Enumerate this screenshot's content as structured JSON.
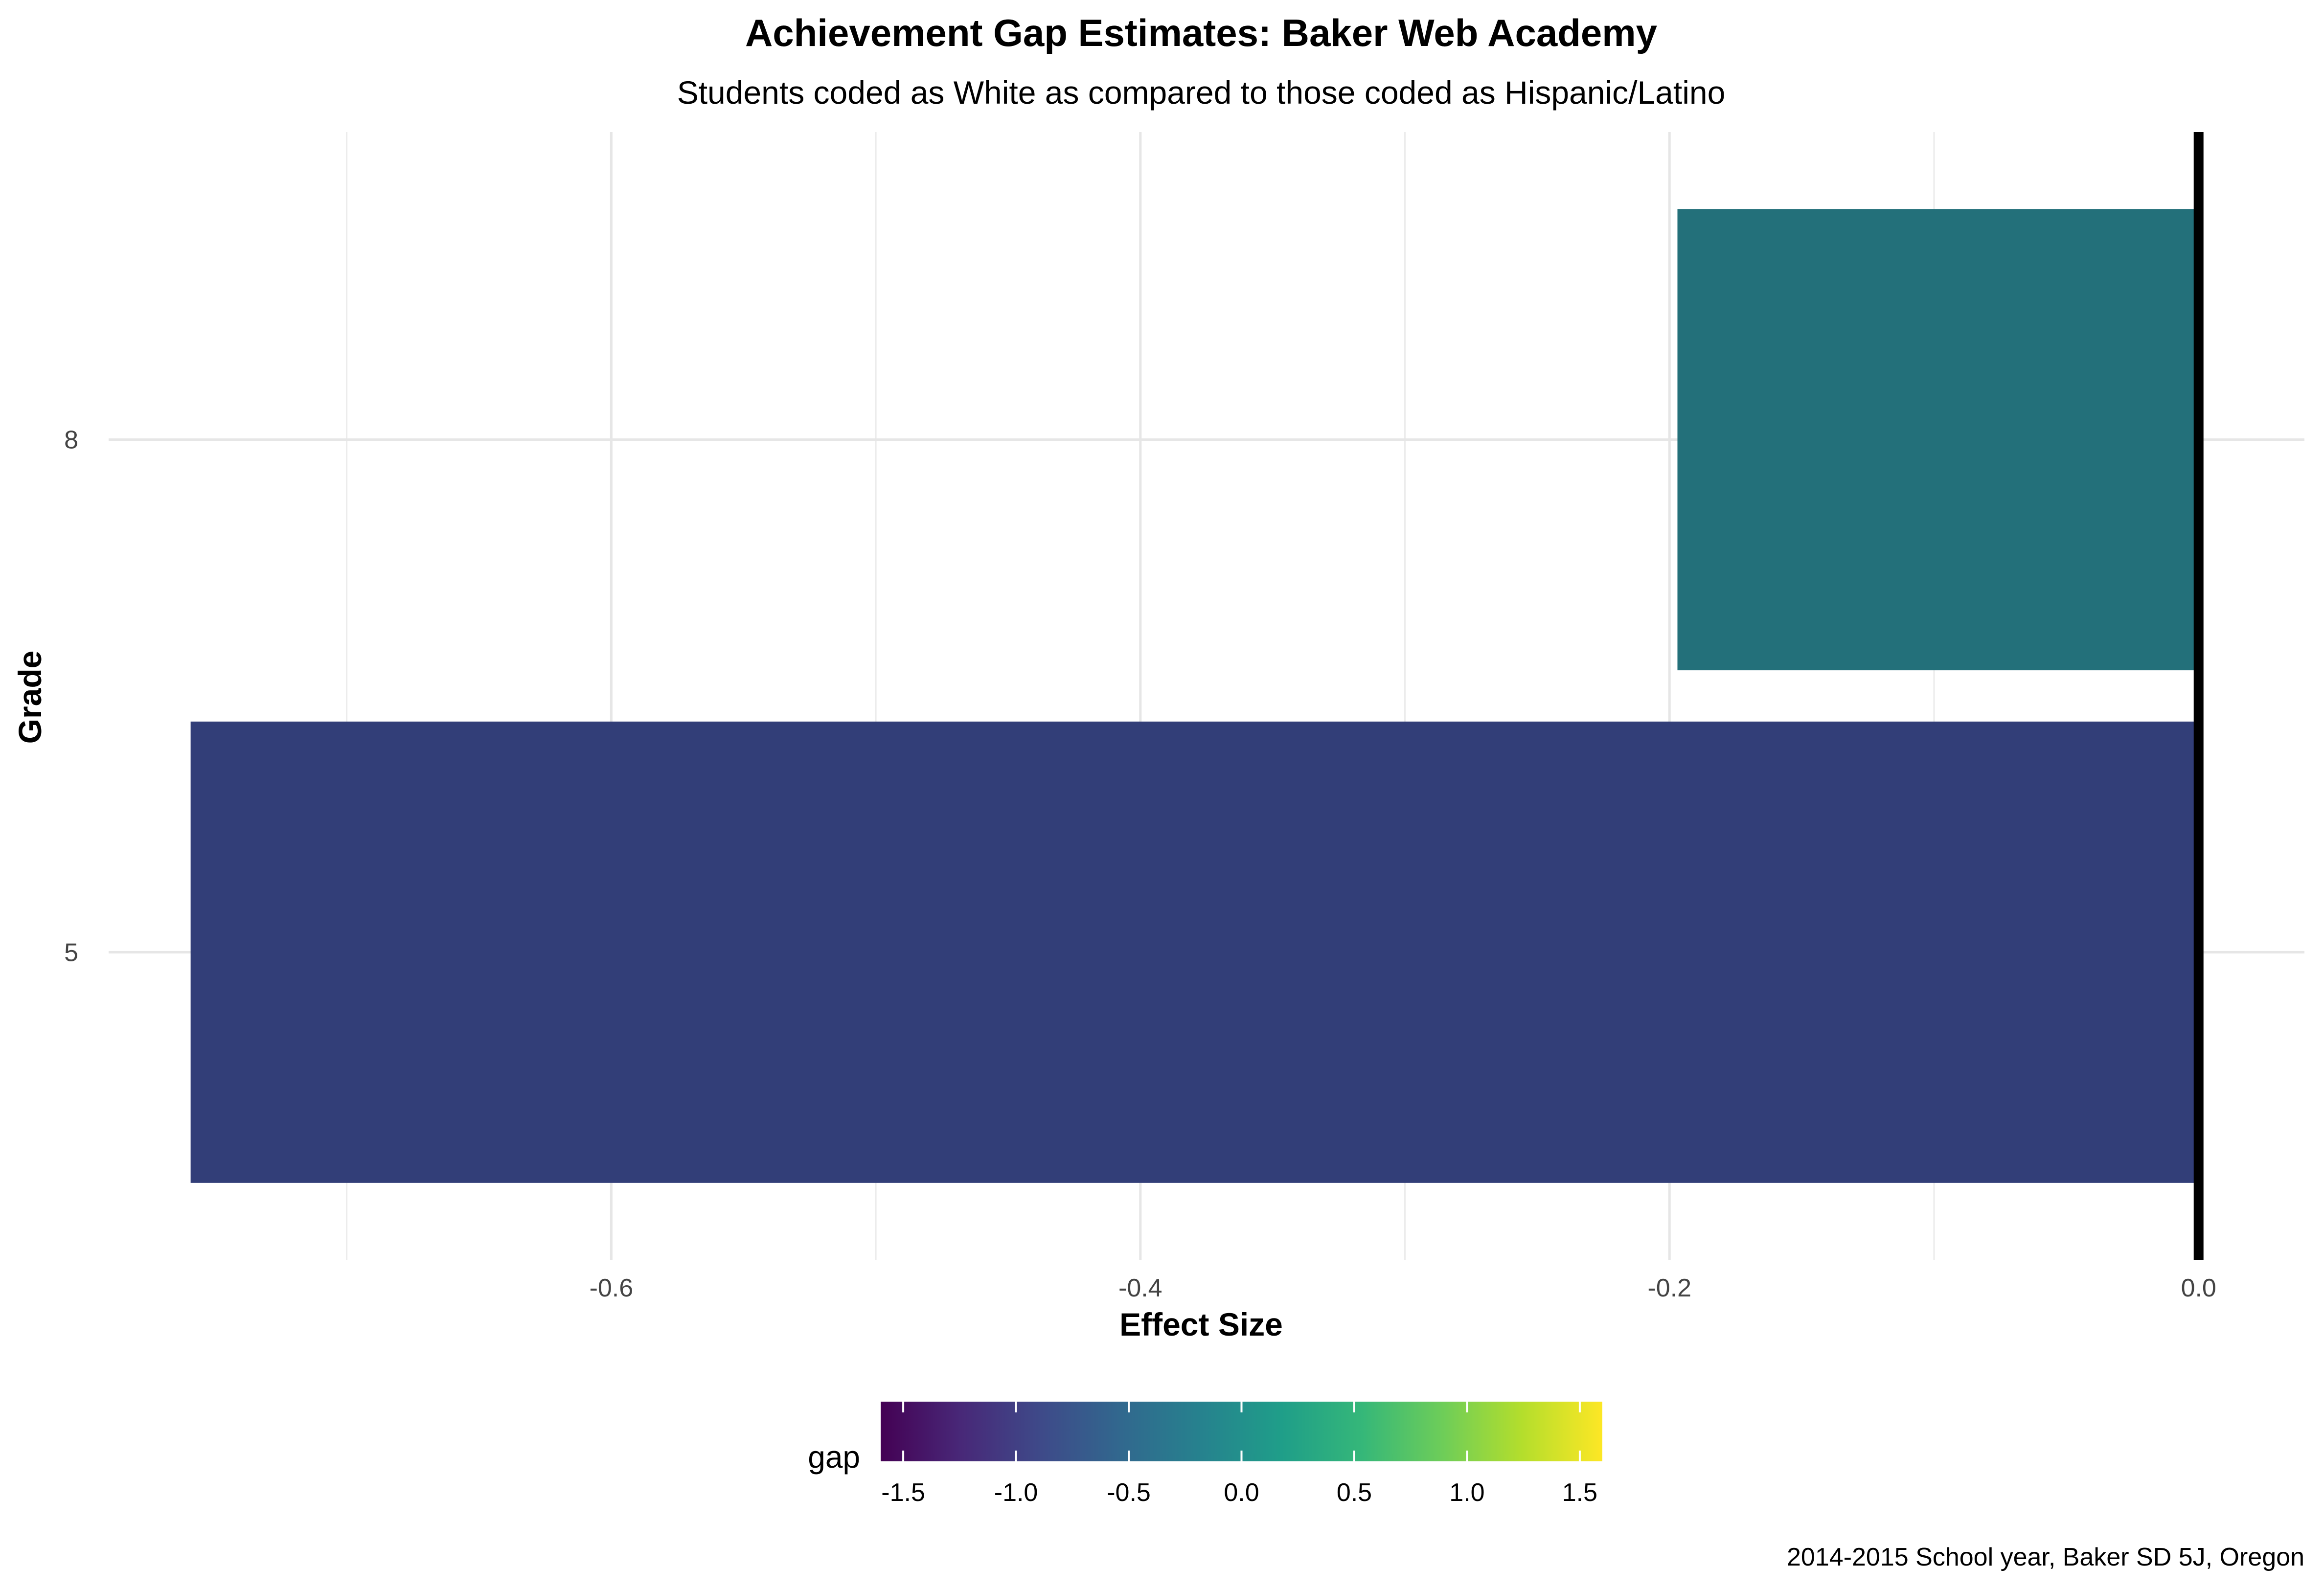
{
  "chart_data": {
    "type": "bar",
    "orientation": "horizontal",
    "title": "Achievement Gap Estimates: Baker Web Academy",
    "subtitle": "Students coded as White as compared to those coded as Hispanic/Latino",
    "xlabel": "Effect Size",
    "ylabel": "Grade",
    "caption": "2014-2015 School year, Baker SD 5J, Oregon",
    "categories": [
      "5",
      "8"
    ],
    "values": [
      -0.759,
      -0.197
    ],
    "xlim": [
      -0.79,
      0.04
    ],
    "x_ticks": [
      "-0.6",
      "-0.4",
      "-0.2",
      "0.0"
    ],
    "x_tick_values": [
      -0.6,
      -0.4,
      -0.2,
      0.0
    ],
    "bar_colors": [
      "#323E78",
      "#23707A"
    ],
    "zero_line": true,
    "grid": true,
    "legend": {
      "title": "gap",
      "type": "colorbar",
      "placement": "bottom",
      "range": [
        -1.6,
        1.6
      ],
      "ticks": [
        "-1.5",
        "-1.0",
        "-0.5",
        "0.0",
        "0.5",
        "1.0",
        "1.5"
      ],
      "tick_values": [
        -1.5,
        -1.0,
        -0.5,
        0.0,
        0.5,
        1.0,
        1.5
      ],
      "colors": [
        "#440154",
        "#482878",
        "#3E4A89",
        "#31688E",
        "#26828E",
        "#1F9E89",
        "#35B779",
        "#6DCD59",
        "#B4DE2C",
        "#FDE725"
      ]
    }
  }
}
